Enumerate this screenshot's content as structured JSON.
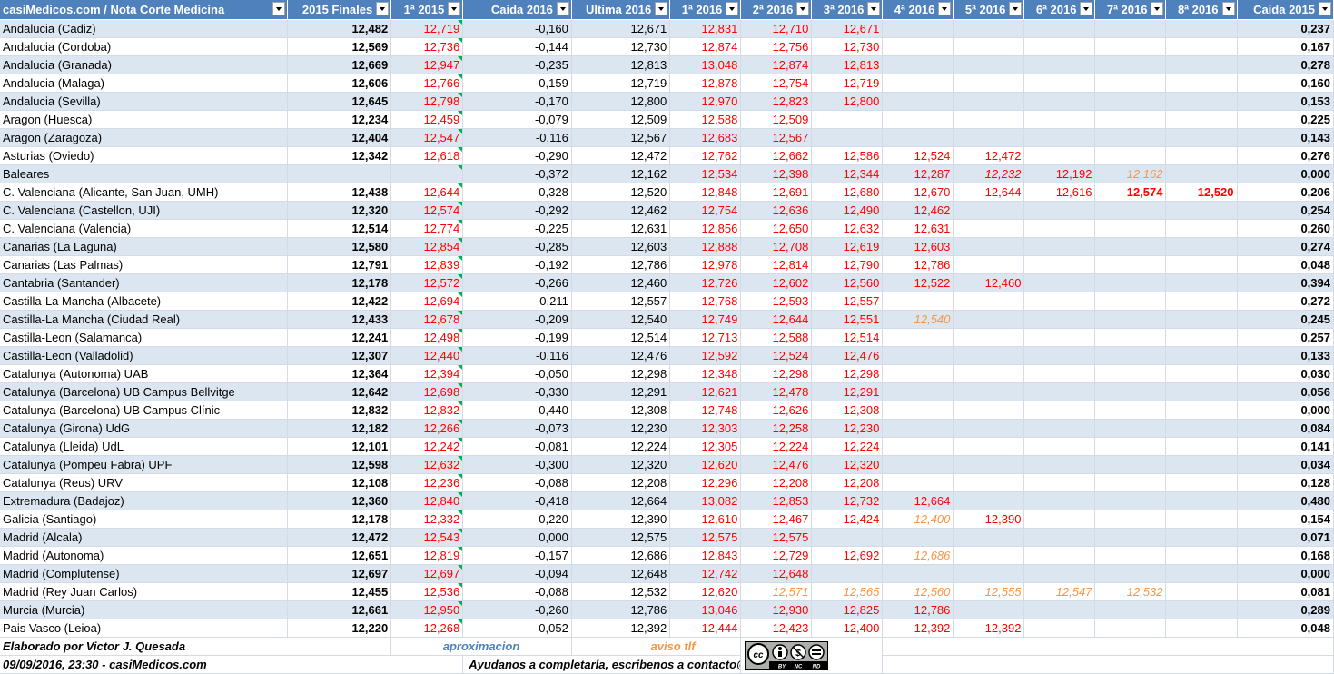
{
  "headers": [
    "casiMedicos.com / Nota Corte Medicina",
    "2015 Finales",
    "1ª 2015",
    "Caida 2016",
    "Ultima 2016",
    "1ª 2016",
    "2ª 2016",
    "3ª 2016",
    "4ª 2016",
    "5ª 2016",
    "6ª 2016",
    "7ª 2016",
    "8ª 2016",
    "Caida 2015"
  ],
  "rows": [
    {
      "name": "Andalucia (Cadiz)",
      "f2015": "12,482",
      "p2015": "12,719",
      "caida2016": "-0,160",
      "ultima2016": "12,671",
      "r1": "12,831",
      "r2": "12,710",
      "r3": "12,671",
      "r4": "",
      "r5": "",
      "r6": "",
      "r7": "",
      "r8": "",
      "caida2015": "0,237"
    },
    {
      "name": "Andalucia (Cordoba)",
      "f2015": "12,569",
      "p2015": "12,736",
      "caida2016": "-0,144",
      "ultima2016": "12,730",
      "r1": "12,874",
      "r2": "12,756",
      "r3": "12,730",
      "r4": "",
      "r5": "",
      "r6": "",
      "r7": "",
      "r8": "",
      "caida2015": "0,167"
    },
    {
      "name": "Andalucia (Granada)",
      "f2015": "12,669",
      "p2015": "12,947",
      "caida2016": "-0,235",
      "ultima2016": "12,813",
      "r1": "13,048",
      "r2": "12,874",
      "r3": "12,813",
      "r4": "",
      "r5": "",
      "r6": "",
      "r7": "",
      "r8": "",
      "caida2015": "0,278"
    },
    {
      "name": "Andalucia (Malaga)",
      "f2015": "12,606",
      "p2015": "12,766",
      "caida2016": "-0,159",
      "ultima2016": "12,719",
      "r1": "12,878",
      "r2": "12,754",
      "r3": "12,719",
      "r4": "",
      "r5": "",
      "r6": "",
      "r7": "",
      "r8": "",
      "caida2015": "0,160"
    },
    {
      "name": "Andalucia (Sevilla)",
      "f2015": "12,645",
      "p2015": "12,798",
      "caida2016": "-0,170",
      "ultima2016": "12,800",
      "r1": "12,970",
      "r2": "12,823",
      "r3": "12,800",
      "r4": "",
      "r5": "",
      "r6": "",
      "r7": "",
      "r8": "",
      "caida2015": "0,153"
    },
    {
      "name": "Aragon (Huesca)",
      "f2015": "12,234",
      "p2015": "12,459",
      "caida2016": "-0,079",
      "ultima2016": "12,509",
      "r1": "12,588",
      "r2": "12,509",
      "r3": "",
      "r4": "",
      "r5": "",
      "r6": "",
      "r7": "",
      "r8": "",
      "caida2015": "0,225"
    },
    {
      "name": "Aragon (Zaragoza)",
      "f2015": "12,404",
      "p2015": "12,547",
      "caida2016": "-0,116",
      "ultima2016": "12,567",
      "r1": "12,683",
      "r2": "12,567",
      "r3": "",
      "r4": "",
      "r5": "",
      "r6": "",
      "r7": "",
      "r8": "",
      "caida2015": "0,143"
    },
    {
      "name": "Asturias (Oviedo)",
      "f2015": "12,342",
      "p2015": "12,618",
      "caida2016": "-0,290",
      "ultima2016": "12,472",
      "r1": "12,762",
      "r2": "12,662",
      "r3": "12,586",
      "r4": "12,524",
      "r5": "12,472",
      "r6": "",
      "r7": "",
      "r8": "",
      "caida2015": "0,276"
    },
    {
      "name": "Baleares",
      "f2015": "",
      "p2015": "",
      "caida2016": "-0,372",
      "ultima2016": "12,162",
      "r1": "12,534",
      "r2": "12,398",
      "r3": "12,344",
      "r4": "12,287",
      "r5": "12,232",
      "r6": "12,192",
      "r7": "12,162",
      "r8": "",
      "caida2015": "0,000"
    },
    {
      "name": "C. Valenciana (Alicante, San Juan, UMH)",
      "f2015": "12,438",
      "p2015": "12,644",
      "caida2016": "-0,328",
      "ultima2016": "12,520",
      "r1": "12,848",
      "r2": "12,691",
      "r3": "12,680",
      "r4": "12,670",
      "r5": "12,644",
      "r6": "12,616",
      "r7": "12,574",
      "r8": "12,520",
      "caida2015": "0,206"
    },
    {
      "name": "C. Valenciana (Castellon, UJI)",
      "f2015": "12,320",
      "p2015": "12,574",
      "caida2016": "-0,292",
      "ultima2016": "12,462",
      "r1": "12,754",
      "r2": "12,636",
      "r3": "12,490",
      "r4": "12,462",
      "r5": "",
      "r6": "",
      "r7": "",
      "r8": "",
      "caida2015": "0,254"
    },
    {
      "name": "C. Valenciana (Valencia)",
      "f2015": "12,514",
      "p2015": "12,774",
      "caida2016": "-0,225",
      "ultima2016": "12,631",
      "r1": "12,856",
      "r2": "12,650",
      "r3": "12,632",
      "r4": "12,631",
      "r5": "",
      "r6": "",
      "r7": "",
      "r8": "",
      "caida2015": "0,260"
    },
    {
      "name": "Canarias (La Laguna)",
      "f2015": "12,580",
      "p2015": "12,854",
      "caida2016": "-0,285",
      "ultima2016": "12,603",
      "r1": "12,888",
      "r2": "12,708",
      "r3": "12,619",
      "r4": "12,603",
      "r5": "",
      "r6": "",
      "r7": "",
      "r8": "",
      "caida2015": "0,274"
    },
    {
      "name": "Canarias (Las Palmas)",
      "f2015": "12,791",
      "p2015": "12,839",
      "caida2016": "-0,192",
      "ultima2016": "12,786",
      "r1": "12,978",
      "r2": "12,814",
      "r3": "12,790",
      "r4": "12,786",
      "r5": "",
      "r6": "",
      "r7": "",
      "r8": "",
      "caida2015": "0,048"
    },
    {
      "name": "Cantabria (Santander)",
      "f2015": "12,178",
      "p2015": "12,572",
      "caida2016": "-0,266",
      "ultima2016": "12,460",
      "r1": "12,726",
      "r2": "12,602",
      "r3": "12,560",
      "r4": "12,522",
      "r5": "12,460",
      "r6": "",
      "r7": "",
      "r8": "",
      "caida2015": "0,394"
    },
    {
      "name": "Castilla-La Mancha (Albacete)",
      "f2015": "12,422",
      "p2015": "12,694",
      "caida2016": "-0,211",
      "ultima2016": "12,557",
      "r1": "12,768",
      "r2": "12,593",
      "r3": "12,557",
      "r4": "",
      "r5": "",
      "r6": "",
      "r7": "",
      "r8": "",
      "caida2015": "0,272"
    },
    {
      "name": "Castilla-La Mancha (Ciudad Real)",
      "f2015": "12,433",
      "p2015": "12,678",
      "caida2016": "-0,209",
      "ultima2016": "12,540",
      "r1": "12,749",
      "r2": "12,644",
      "r3": "12,551",
      "r4": "12,540",
      "r5": "",
      "r6": "",
      "r7": "",
      "r8": "",
      "caida2015": "0,245"
    },
    {
      "name": "Castilla-Leon (Salamanca)",
      "f2015": "12,241",
      "p2015": "12,498",
      "caida2016": "-0,199",
      "ultima2016": "12,514",
      "r1": "12,713",
      "r2": "12,588",
      "r3": "12,514",
      "r4": "",
      "r5": "",
      "r6": "",
      "r7": "",
      "r8": "",
      "caida2015": "0,257"
    },
    {
      "name": "Castilla-Leon (Valladolid)",
      "f2015": "12,307",
      "p2015": "12,440",
      "caida2016": "-0,116",
      "ultima2016": "12,476",
      "r1": "12,592",
      "r2": "12,524",
      "r3": "12,476",
      "r4": "",
      "r5": "",
      "r6": "",
      "r7": "",
      "r8": "",
      "caida2015": "0,133"
    },
    {
      "name": "Catalunya (Autonoma) UAB",
      "f2015": "12,364",
      "p2015": "12,394",
      "caida2016": "-0,050",
      "ultima2016": "12,298",
      "r1": "12,348",
      "r2": "12,298",
      "r3": "12,298",
      "r4": "",
      "r5": "",
      "r6": "",
      "r7": "",
      "r8": "",
      "caida2015": "0,030"
    },
    {
      "name": "Catalunya (Barcelona) UB Campus Bellvitge",
      "f2015": "12,642",
      "p2015": "12,698",
      "caida2016": "-0,330",
      "ultima2016": "12,291",
      "r1": "12,621",
      "r2": "12,478",
      "r3": "12,291",
      "r4": "",
      "r5": "",
      "r6": "",
      "r7": "",
      "r8": "",
      "caida2015": "0,056"
    },
    {
      "name": "Catalunya (Barcelona) UB Campus Clínic",
      "f2015": "12,832",
      "p2015": "12,832",
      "caida2016": "-0,440",
      "ultima2016": "12,308",
      "r1": "12,748",
      "r2": "12,626",
      "r3": "12,308",
      "r4": "",
      "r5": "",
      "r6": "",
      "r7": "",
      "r8": "",
      "caida2015": "0,000"
    },
    {
      "name": "Catalunya (Girona) UdG",
      "f2015": "12,182",
      "p2015": "12,266",
      "caida2016": "-0,073",
      "ultima2016": "12,230",
      "r1": "12,303",
      "r2": "12,258",
      "r3": "12,230",
      "r4": "",
      "r5": "",
      "r6": "",
      "r7": "",
      "r8": "",
      "caida2015": "0,084"
    },
    {
      "name": "Catalunya (Lleida) UdL",
      "f2015": "12,101",
      "p2015": "12,242",
      "caida2016": "-0,081",
      "ultima2016": "12,224",
      "r1": "12,305",
      "r2": "12,224",
      "r3": "12,224",
      "r4": "",
      "r5": "",
      "r6": "",
      "r7": "",
      "r8": "",
      "caida2015": "0,141"
    },
    {
      "name": "Catalunya (Pompeu Fabra) UPF",
      "f2015": "12,598",
      "p2015": "12,632",
      "caida2016": "-0,300",
      "ultima2016": "12,320",
      "r1": "12,620",
      "r2": "12,476",
      "r3": "12,320",
      "r4": "",
      "r5": "",
      "r6": "",
      "r7": "",
      "r8": "",
      "caida2015": "0,034"
    },
    {
      "name": "Catalunya (Reus) URV",
      "f2015": "12,108",
      "p2015": "12,236",
      "caida2016": "-0,088",
      "ultima2016": "12,208",
      "r1": "12,296",
      "r2": "12,208",
      "r3": "12,208",
      "r4": "",
      "r5": "",
      "r6": "",
      "r7": "",
      "r8": "",
      "caida2015": "0,128"
    },
    {
      "name": "Extremadura (Badajoz)",
      "f2015": "12,360",
      "p2015": "12,840",
      "caida2016": "-0,418",
      "ultima2016": "12,664",
      "r1": "13,082",
      "r2": "12,853",
      "r3": "12,732",
      "r4": "12,664",
      "r5": "",
      "r6": "",
      "r7": "",
      "r8": "",
      "caida2015": "0,480"
    },
    {
      "name": "Galicia (Santiago)",
      "f2015": "12,178",
      "p2015": "12,332",
      "caida2016": "-0,220",
      "ultima2016": "12,390",
      "r1": "12,610",
      "r2": "12,467",
      "r3": "12,424",
      "r4": "12,400",
      "r5": "12,390",
      "r6": "",
      "r7": "",
      "r8": "",
      "caida2015": "0,154"
    },
    {
      "name": "Madrid (Alcala)",
      "f2015": "12,472",
      "p2015": "12,543",
      "caida2016": "0,000",
      "ultima2016": "12,575",
      "r1": "12,575",
      "r2": "12,575",
      "r3": "",
      "r4": "",
      "r5": "",
      "r6": "",
      "r7": "",
      "r8": "",
      "caida2015": "0,071"
    },
    {
      "name": "Madrid (Autonoma)",
      "f2015": "12,651",
      "p2015": "12,819",
      "caida2016": "-0,157",
      "ultima2016": "12,686",
      "r1": "12,843",
      "r2": "12,729",
      "r3": "12,692",
      "r4": "12,686",
      "r5": "",
      "r6": "",
      "r7": "",
      "r8": "",
      "caida2015": "0,168"
    },
    {
      "name": "Madrid (Complutense)",
      "f2015": "12,697",
      "p2015": "12,697",
      "caida2016": "-0,094",
      "ultima2016": "12,648",
      "r1": "12,742",
      "r2": "12,648",
      "r3": "",
      "r4": "",
      "r5": "",
      "r6": "",
      "r7": "",
      "r8": "",
      "caida2015": "0,000"
    },
    {
      "name": "Madrid (Rey Juan Carlos)",
      "f2015": "12,455",
      "p2015": "12,536",
      "caida2016": "-0,088",
      "ultima2016": "12,532",
      "r1": "12,620",
      "r2": "12,571",
      "r3": "12,565",
      "r4": "12,560",
      "r5": "12,555",
      "r6": "12,547",
      "r7": "12,532",
      "r8": "",
      "caida2015": "0,081"
    },
    {
      "name": "Murcia (Murcia)",
      "f2015": "12,661",
      "p2015": "12,950",
      "caida2016": "-0,260",
      "ultima2016": "12,786",
      "r1": "13,046",
      "r2": "12,930",
      "r3": "12,825",
      "r4": "12,786",
      "r5": "",
      "r6": "",
      "r7": "",
      "r8": "",
      "caida2015": "0,289"
    },
    {
      "name": "Pais Vasco (Leioa)",
      "f2015": "12,220",
      "p2015": "12,268",
      "caida2016": "-0,052",
      "ultima2016": "12,392",
      "r1": "12,444",
      "r2": "12,423",
      "r3": "12,400",
      "r4": "12,392",
      "r5": "12,392",
      "r6": "",
      "r7": "",
      "r8": "",
      "caida2015": "0,048"
    }
  ],
  "footer": {
    "author": "Elaborado por Victor J. Quesada",
    "date": "09/09/2016, 23:30 - casiMedicos.com",
    "legend_approx": "aproximacion",
    "legend_aviso": "aviso tlf",
    "help": "Ayudanos a completarla, escribenos a contacto@casimedicos.com",
    "license_badge": "cc by-nc-nd"
  },
  "colors": {
    "header_bg": "#4f81bd",
    "band": "#dce6f1",
    "red": "#ff0000",
    "orange": "#f79646",
    "approx_blue": "#4f81bd",
    "triangle": "#00b050"
  }
}
